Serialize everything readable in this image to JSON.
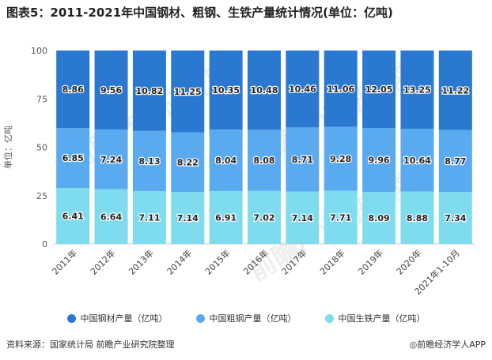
{
  "title": "图表5：2011-2021年中国钢材、粗钢、生铁产量统计情况(单位：亿吨)",
  "source": "资料来源：国家统计局 前瞻产业研究院整理",
  "brand": "◎前瞻经济学人APP",
  "watermark": "前瞻产业研究院",
  "colors": {
    "steel": "#2a78d0",
    "crude": "#5aaaf0",
    "iron": "#7fdcee",
    "axis": "#cccccc",
    "text": "#333333"
  },
  "chart_data": {
    "type": "bar",
    "stacked": true,
    "percent": true,
    "categories": [
      "2011年",
      "2012年",
      "2013年",
      "2014年",
      "2015年",
      "2016年",
      "2017年",
      "2018年",
      "2019年",
      "2020年",
      "2021年1-10月"
    ],
    "series": [
      {
        "name": "中国生铁产量（亿吨）",
        "values": [
          6.41,
          6.64,
          7.11,
          7.14,
          6.91,
          7.02,
          7.14,
          7.71,
          8.09,
          8.88,
          7.34
        ],
        "labels": [
          "6.41",
          "6.64",
          "7.11",
          "7.14",
          "6.91",
          "7.02",
          "7.14",
          "7.71",
          "8.09",
          "8.88",
          "7.34"
        ]
      },
      {
        "name": "中国粗钢产量（亿吨）",
        "values": [
          6.85,
          7.24,
          8.13,
          8.22,
          8.04,
          8.08,
          8.71,
          9.28,
          9.96,
          10.64,
          8.77
        ],
        "labels": [
          "6.85",
          "7.24",
          "8.13",
          "8.22",
          "8.04",
          "8.08",
          "8.71",
          "9.28",
          "9.96",
          "10.64",
          "8.77"
        ]
      },
      {
        "name": "中国钢材产量（亿吨）",
        "values": [
          8.86,
          9.56,
          10.82,
          11.25,
          10.35,
          10.48,
          10.46,
          11.06,
          12.05,
          13.25,
          11.22
        ],
        "labels": [
          "8.86",
          "9.56",
          "10.82",
          "11.25",
          "10.35",
          "10.48",
          "10.46",
          "11.06",
          "12.05",
          "13.25",
          "11.22"
        ]
      }
    ],
    "legend_order": [
      "中国钢材产量（亿吨）",
      "中国粗钢产量（亿吨）",
      "中国生铁产量（亿吨）"
    ],
    "ylabel": "单位：亿吨",
    "ylim": [
      0,
      100
    ],
    "yticks": [
      "0",
      "25",
      "50",
      "75",
      "100"
    ],
    "legend_position": "bottom",
    "grid": false
  }
}
